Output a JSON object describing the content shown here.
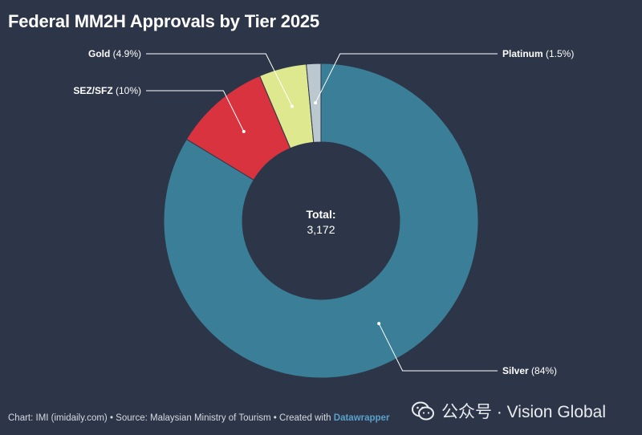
{
  "title": "Federal MM2H Approvals by Tier 2025",
  "chart_data": {
    "type": "pie",
    "title": "Federal MM2H Approvals by Tier 2025",
    "donut": true,
    "center_label": "Total:",
    "center_value": "3,172",
    "slices": [
      {
        "name": "Silver",
        "pct_label": "(84%)",
        "value": 84,
        "color": "#3a7f97"
      },
      {
        "name": "SEZ/SFZ",
        "pct_label": "(10%)",
        "value": 10,
        "color": "#d8333f"
      },
      {
        "name": "Gold",
        "pct_label": "(4.9%)",
        "value": 4.9,
        "color": "#dde88f"
      },
      {
        "name": "Platinum",
        "pct_label": "(1.5%)",
        "value": 1.5,
        "color": "#bcc8d0"
      }
    ]
  },
  "footer": {
    "prefix": "Chart: IMI (imidaily.com) • Source: Malaysian Ministry of Tourism • Created with ",
    "brand": "Datawrapper"
  },
  "watermark": {
    "text": "公众号 · Vision Global",
    "icon": "wechat-icon"
  }
}
